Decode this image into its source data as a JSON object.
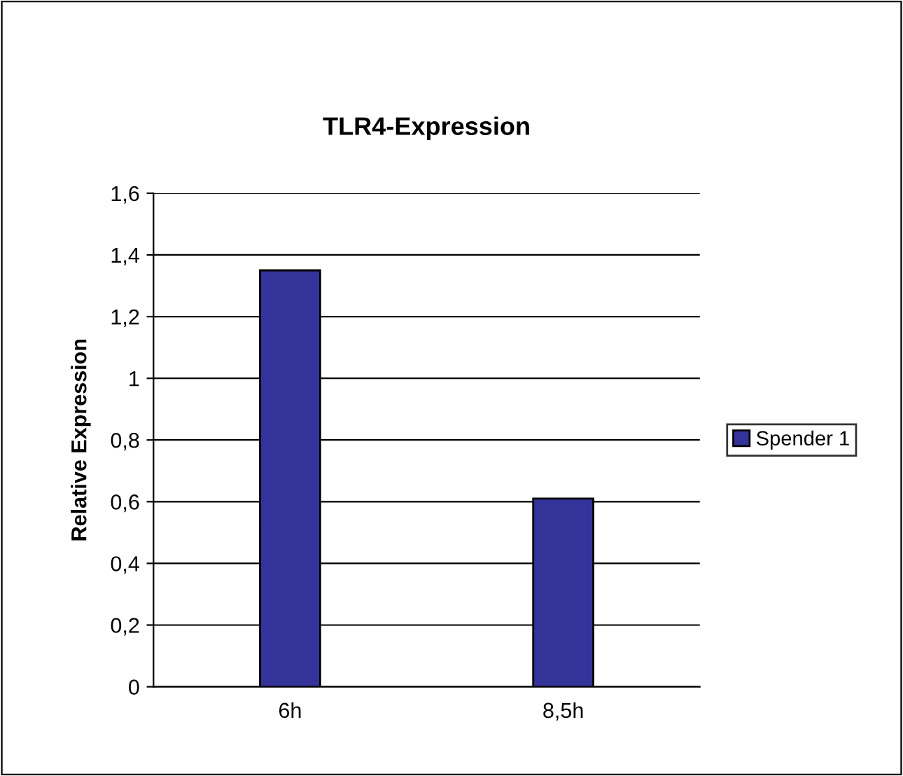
{
  "chart_data": {
    "type": "bar",
    "title": "TLR4-Expression",
    "ylabel": "Relative Expression",
    "categories": [
      "6h",
      "8,5h"
    ],
    "series": [
      {
        "name": "Spender 1",
        "color": "#333399",
        "values": [
          1.35,
          0.61
        ]
      }
    ],
    "ylim": [
      0,
      1.6
    ],
    "yticks": [
      0,
      {
        "value": 0.2,
        "label": "0,2"
      },
      {
        "value": 0.4,
        "label": "0,4"
      },
      {
        "value": 0.6,
        "label": "0,6"
      },
      {
        "value": 0.8,
        "label": "0,8"
      },
      1,
      {
        "value": 1.2,
        "label": "1,2"
      },
      {
        "value": 1.4,
        "label": "1,4"
      },
      {
        "value": 1.6,
        "label": "1,6"
      }
    ],
    "grid": "y",
    "legend": "right"
  }
}
